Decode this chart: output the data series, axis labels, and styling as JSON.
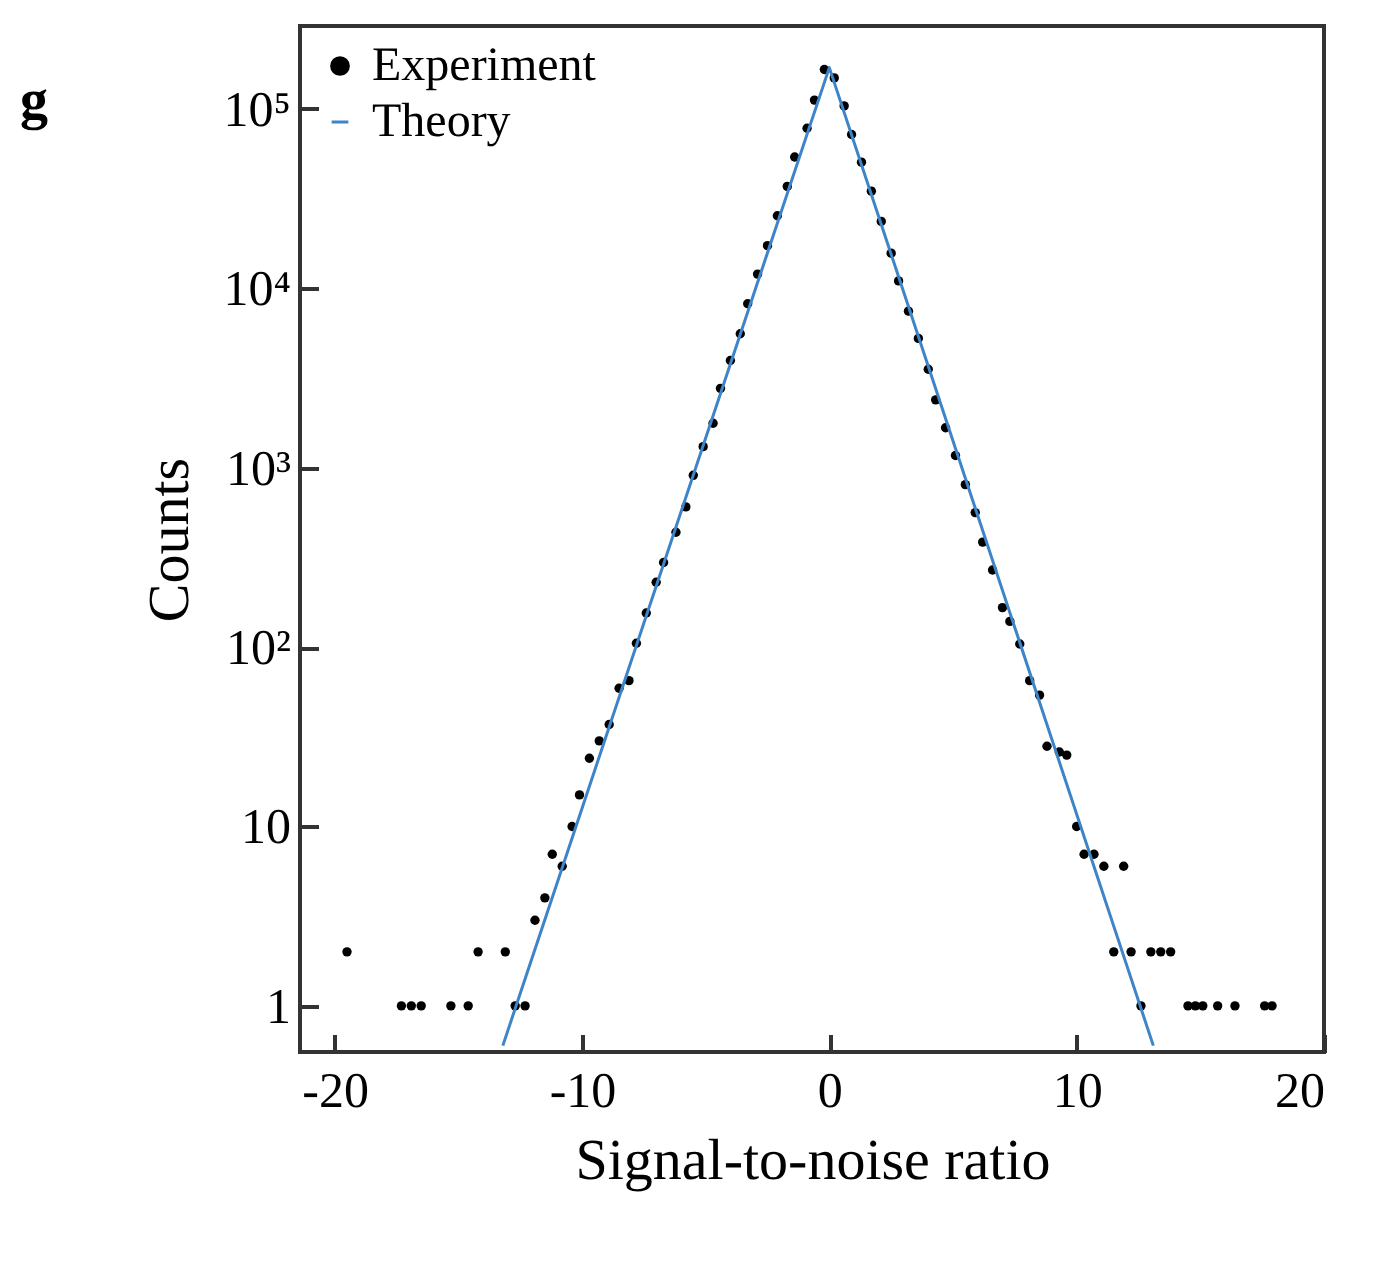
{
  "chart_data": {
    "type": "scatter",
    "title": "g",
    "xlabel": "Signal-to-noise ratio",
    "ylabel": "Counts",
    "log": "y",
    "legend": "top left",
    "grid": false,
    "xlim": [
      -21.4,
      20
    ],
    "xticks": [
      -20,
      -10,
      0,
      10,
      20
    ],
    "ylim": [
      0.553,
      290000
    ],
    "yticks": [
      {
        "value": 1,
        "label": "1"
      },
      {
        "value": 10,
        "label": "10"
      },
      {
        "value": 100,
        "label": "10²"
      },
      {
        "value": 1000,
        "label": "10³"
      },
      {
        "value": 10000,
        "label": "10⁴"
      },
      {
        "value": 100000,
        "label": "10⁵"
      }
    ],
    "series": [
      {
        "name": "Experiment",
        "marker": "circle",
        "color": "#000000",
        "x": [
          -19.5,
          -17.3,
          -16.9,
          -16.5,
          -15.3,
          -14.6,
          -14.2,
          -13.1,
          -12.7,
          -12.3,
          -11.9,
          -11.5,
          -11.2,
          -10.8,
          -10.4,
          -10.1,
          -9.7,
          -9.3,
          -8.9,
          -8.5,
          -8.1,
          -7.8,
          -7.4,
          -7.0,
          -6.7,
          -6.2,
          -5.8,
          -5.5,
          -5.1,
          -4.7,
          -4.4,
          -4.0,
          -3.6,
          -3.3,
          -2.9,
          -2.5,
          -2.1,
          -1.7,
          -1.4,
          -0.9,
          -0.6,
          -0.2,
          0.2,
          0.6,
          0.9,
          1.3,
          1.7,
          2.1,
          2.5,
          2.8,
          3.2,
          3.6,
          4.0,
          4.3,
          4.7,
          5.1,
          5.5,
          5.9,
          6.2,
          6.6,
          7.0,
          7.3,
          7.7,
          8.1,
          8.5,
          8.8,
          9.3,
          9.6,
          10.0,
          10.3,
          10.7,
          11.1,
          11.5,
          11.9,
          12.2,
          12.6,
          13.0,
          13.4,
          13.8,
          14.5,
          14.8,
          15.1,
          15.7,
          16.4,
          17.6,
          17.9
        ],
        "values": [
          2,
          1,
          1,
          1,
          1,
          1,
          2,
          2,
          1,
          1,
          3,
          4,
          7,
          6,
          10,
          15,
          24,
          30,
          37,
          59,
          65,
          105,
          155,
          230,
          296,
          437,
          605,
          907,
          1310,
          1770,
          2770,
          3960,
          5580,
          8200,
          12000,
          17300,
          25400,
          37000,
          54000,
          78000,
          112000,
          166000,
          149000,
          104000,
          72000,
          50500,
          34800,
          23600,
          15700,
          11000,
          7460,
          5260,
          3540,
          2390,
          1670,
          1170,
          805,
          562,
          385,
          269,
          166,
          139,
          104,
          65,
          54,
          28,
          26,
          25,
          10,
          7,
          7,
          6,
          2,
          6,
          2,
          1,
          2,
          2,
          2,
          1,
          1,
          1,
          1,
          1,
          1,
          1
        ]
      },
      {
        "name": "Theory",
        "type": "line",
        "color": "#3d85c6",
        "x": [
          -13.2,
          0,
          13.1
        ],
        "values": [
          0.6,
          170000,
          0.6
        ]
      }
    ]
  }
}
